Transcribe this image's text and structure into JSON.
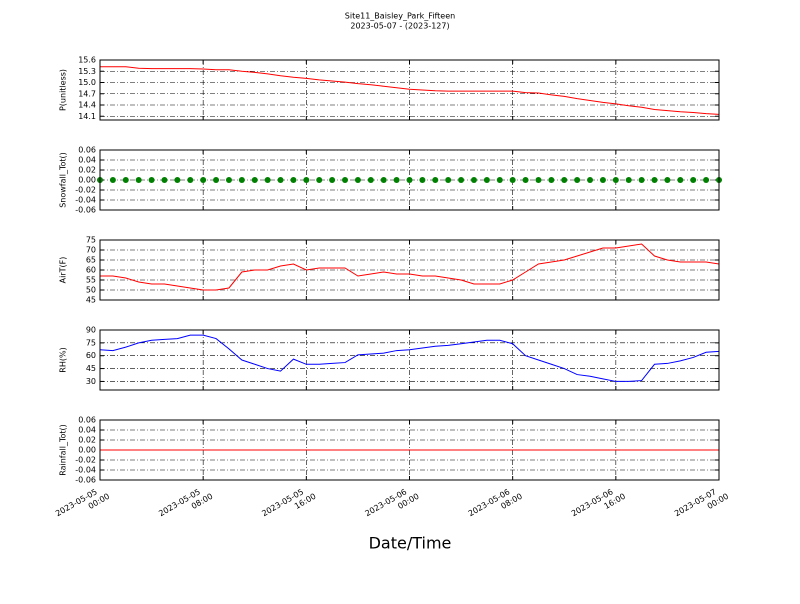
{
  "chart_data": [
    {
      "type": "line",
      "title": "Site11_Baisley_Park_Fifteen",
      "subtitle": "2023-05-07 - (2023-127)",
      "ylabel": "P(unitless)",
      "x": [
        "2023-05-05 00:00",
        "2023-05-05 01:00",
        "2023-05-05 02:00",
        "2023-05-05 03:00",
        "2023-05-05 04:00",
        "2023-05-05 05:00",
        "2023-05-05 06:00",
        "2023-05-05 07:00",
        "2023-05-05 08:00",
        "2023-05-05 09:00",
        "2023-05-05 10:00",
        "2023-05-05 11:00",
        "2023-05-05 12:00",
        "2023-05-05 13:00",
        "2023-05-05 14:00",
        "2023-05-05 15:00",
        "2023-05-05 16:00",
        "2023-05-05 17:00",
        "2023-05-05 18:00",
        "2023-05-05 19:00",
        "2023-05-05 20:00",
        "2023-05-05 21:00",
        "2023-05-05 22:00",
        "2023-05-05 23:00",
        "2023-05-06 00:00",
        "2023-05-06 01:00",
        "2023-05-06 02:00",
        "2023-05-06 03:00",
        "2023-05-06 04:00",
        "2023-05-06 05:00",
        "2023-05-06 06:00",
        "2023-05-06 07:00",
        "2023-05-06 08:00",
        "2023-05-06 09:00",
        "2023-05-06 10:00",
        "2023-05-06 11:00",
        "2023-05-06 12:00",
        "2023-05-06 13:00",
        "2023-05-06 14:00",
        "2023-05-06 15:00",
        "2023-05-06 16:00",
        "2023-05-06 17:00",
        "2023-05-06 18:00",
        "2023-05-06 19:00",
        "2023-05-06 20:00",
        "2023-05-06 21:00",
        "2023-05-06 22:00",
        "2023-05-06 23:00",
        "2023-05-07 00:00"
      ],
      "series": [
        {
          "color": "#ff0000",
          "style": "line",
          "values": [
            15.42,
            15.42,
            15.42,
            15.38,
            15.37,
            15.37,
            15.37,
            15.37,
            15.36,
            15.34,
            15.34,
            15.3,
            15.27,
            15.23,
            15.18,
            15.14,
            15.11,
            15.07,
            15.04,
            15.01,
            14.97,
            14.94,
            14.9,
            14.86,
            14.82,
            14.8,
            14.78,
            14.77,
            14.77,
            14.77,
            14.77,
            14.77,
            14.77,
            14.73,
            14.72,
            14.67,
            14.63,
            14.57,
            14.52,
            14.47,
            14.43,
            14.38,
            14.34,
            14.28,
            14.25,
            14.22,
            14.2,
            14.17,
            14.15
          ]
        }
      ],
      "ylim": [
        14.0,
        15.6
      ],
      "yticks": [
        14.1,
        14.4,
        14.7,
        {
          "value": 15,
          "label": "15.0"
        },
        15.3,
        15.6
      ],
      "grid": true
    },
    {
      "type": "line",
      "ylabel": "Snowfall_Tot()",
      "x": [
        "2023-05-05 00:00",
        "2023-05-05 01:00",
        "2023-05-05 02:00",
        "2023-05-05 03:00",
        "2023-05-05 04:00",
        "2023-05-05 05:00",
        "2023-05-05 06:00",
        "2023-05-05 07:00",
        "2023-05-05 08:00",
        "2023-05-05 09:00",
        "2023-05-05 10:00",
        "2023-05-05 11:00",
        "2023-05-05 12:00",
        "2023-05-05 13:00",
        "2023-05-05 14:00",
        "2023-05-05 15:00",
        "2023-05-05 16:00",
        "2023-05-05 17:00",
        "2023-05-05 18:00",
        "2023-05-05 19:00",
        "2023-05-05 20:00",
        "2023-05-05 21:00",
        "2023-05-05 22:00",
        "2023-05-05 23:00",
        "2023-05-06 00:00",
        "2023-05-06 01:00",
        "2023-05-06 02:00",
        "2023-05-06 03:00",
        "2023-05-06 04:00",
        "2023-05-06 05:00",
        "2023-05-06 06:00",
        "2023-05-06 07:00",
        "2023-05-06 08:00",
        "2023-05-06 09:00",
        "2023-05-06 10:00",
        "2023-05-06 11:00",
        "2023-05-06 12:00",
        "2023-05-06 13:00",
        "2023-05-06 14:00",
        "2023-05-06 15:00",
        "2023-05-06 16:00",
        "2023-05-06 17:00",
        "2023-05-06 18:00",
        "2023-05-06 19:00",
        "2023-05-06 20:00",
        "2023-05-06 21:00",
        "2023-05-06 22:00",
        "2023-05-06 23:00",
        "2023-05-07 00:00"
      ],
      "series": [
        {
          "color": "#008000",
          "style": "marker",
          "values": [
            0,
            0,
            0,
            0,
            0,
            0,
            0,
            0,
            0,
            0,
            0,
            0,
            0,
            0,
            0,
            0,
            0,
            0,
            0,
            0,
            0,
            0,
            0,
            0,
            0,
            0,
            0,
            0,
            0,
            0,
            0,
            0,
            0,
            0,
            0,
            0,
            0,
            0,
            0,
            0,
            0,
            0,
            0,
            0,
            0,
            0,
            0,
            0,
            0
          ]
        }
      ],
      "ylim": [
        -0.06,
        0.06
      ],
      "yticks": [
        -0.06,
        -0.04,
        -0.02,
        {
          "value": 0,
          "label": "0.00"
        },
        0.02,
        0.04,
        0.06
      ],
      "grid": true
    },
    {
      "type": "line",
      "ylabel": "AirT(F)",
      "x": [
        "2023-05-05 00:00",
        "2023-05-05 01:00",
        "2023-05-05 02:00",
        "2023-05-05 03:00",
        "2023-05-05 04:00",
        "2023-05-05 05:00",
        "2023-05-05 06:00",
        "2023-05-05 07:00",
        "2023-05-05 08:00",
        "2023-05-05 09:00",
        "2023-05-05 10:00",
        "2023-05-05 11:00",
        "2023-05-05 12:00",
        "2023-05-05 13:00",
        "2023-05-05 14:00",
        "2023-05-05 15:00",
        "2023-05-05 16:00",
        "2023-05-05 17:00",
        "2023-05-05 18:00",
        "2023-05-05 19:00",
        "2023-05-05 20:00",
        "2023-05-05 21:00",
        "2023-05-05 22:00",
        "2023-05-05 23:00",
        "2023-05-06 00:00",
        "2023-05-06 01:00",
        "2023-05-06 02:00",
        "2023-05-06 03:00",
        "2023-05-06 04:00",
        "2023-05-06 05:00",
        "2023-05-06 06:00",
        "2023-05-06 07:00",
        "2023-05-06 08:00",
        "2023-05-06 09:00",
        "2023-05-06 10:00",
        "2023-05-06 11:00",
        "2023-05-06 12:00",
        "2023-05-06 13:00",
        "2023-05-06 14:00",
        "2023-05-06 15:00",
        "2023-05-06 16:00",
        "2023-05-06 17:00",
        "2023-05-06 18:00",
        "2023-05-06 19:00",
        "2023-05-06 20:00",
        "2023-05-06 21:00",
        "2023-05-06 22:00",
        "2023-05-06 23:00",
        "2023-05-07 00:00"
      ],
      "series": [
        {
          "color": "#ff0000",
          "style": "line",
          "values": [
            57,
            57,
            56,
            54,
            53,
            53,
            52,
            51,
            50,
            50,
            51,
            59,
            60,
            60,
            62,
            63,
            60,
            61,
            61,
            61,
            57,
            58,
            59,
            58,
            58,
            57,
            57,
            56,
            55,
            53,
            53,
            53,
            55,
            59,
            63,
            64,
            65,
            67,
            69,
            71,
            71,
            72,
            73,
            67,
            65,
            64,
            64,
            64,
            63
          ]
        }
      ],
      "ylim": [
        45,
        75
      ],
      "yticks": [
        45,
        50,
        55,
        60,
        65,
        70,
        75
      ],
      "grid": true
    },
    {
      "type": "line",
      "ylabel": "RH(%)",
      "x": [
        "2023-05-05 00:00",
        "2023-05-05 01:00",
        "2023-05-05 02:00",
        "2023-05-05 03:00",
        "2023-05-05 04:00",
        "2023-05-05 05:00",
        "2023-05-05 06:00",
        "2023-05-05 07:00",
        "2023-05-05 08:00",
        "2023-05-05 09:00",
        "2023-05-05 10:00",
        "2023-05-05 11:00",
        "2023-05-05 12:00",
        "2023-05-05 13:00",
        "2023-05-05 14:00",
        "2023-05-05 15:00",
        "2023-05-05 16:00",
        "2023-05-05 17:00",
        "2023-05-05 18:00",
        "2023-05-05 19:00",
        "2023-05-05 20:00",
        "2023-05-05 21:00",
        "2023-05-05 22:00",
        "2023-05-05 23:00",
        "2023-05-06 00:00",
        "2023-05-06 01:00",
        "2023-05-06 02:00",
        "2023-05-06 03:00",
        "2023-05-06 04:00",
        "2023-05-06 05:00",
        "2023-05-06 06:00",
        "2023-05-06 07:00",
        "2023-05-06 08:00",
        "2023-05-06 09:00",
        "2023-05-06 10:00",
        "2023-05-06 11:00",
        "2023-05-06 12:00",
        "2023-05-06 13:00",
        "2023-05-06 14:00",
        "2023-05-06 15:00",
        "2023-05-06 16:00",
        "2023-05-06 17:00",
        "2023-05-06 18:00",
        "2023-05-06 19:00",
        "2023-05-06 20:00",
        "2023-05-06 21:00",
        "2023-05-06 22:00",
        "2023-05-06 23:00",
        "2023-05-07 00:00"
      ],
      "series": [
        {
          "color": "#0000ff",
          "style": "line",
          "values": [
            67,
            66,
            70,
            75,
            78,
            79,
            80,
            84,
            84,
            80,
            68,
            55,
            50,
            45,
            42,
            56,
            50,
            50,
            51,
            52,
            61,
            62,
            63,
            66,
            67,
            69,
            71,
            72,
            74,
            76,
            78,
            78,
            74,
            60,
            55,
            50,
            45,
            38,
            36,
            33,
            30,
            30,
            31,
            50,
            51,
            54,
            58,
            64,
            65
          ]
        }
      ],
      "ylim": [
        20,
        90
      ],
      "yticks": [
        30,
        45,
        60,
        75,
        90
      ],
      "grid": true
    },
    {
      "type": "line",
      "ylabel": "Rainfall_Tot()",
      "xlabel": "Date/Time",
      "x": [
        "2023-05-05 00:00",
        "2023-05-05 01:00",
        "2023-05-05 02:00",
        "2023-05-05 03:00",
        "2023-05-05 04:00",
        "2023-05-05 05:00",
        "2023-05-05 06:00",
        "2023-05-05 07:00",
        "2023-05-05 08:00",
        "2023-05-05 09:00",
        "2023-05-05 10:00",
        "2023-05-05 11:00",
        "2023-05-05 12:00",
        "2023-05-05 13:00",
        "2023-05-05 14:00",
        "2023-05-05 15:00",
        "2023-05-05 16:00",
        "2023-05-05 17:00",
        "2023-05-05 18:00",
        "2023-05-05 19:00",
        "2023-05-05 20:00",
        "2023-05-05 21:00",
        "2023-05-05 22:00",
        "2023-05-05 23:00",
        "2023-05-06 00:00",
        "2023-05-06 01:00",
        "2023-05-06 02:00",
        "2023-05-06 03:00",
        "2023-05-06 04:00",
        "2023-05-06 05:00",
        "2023-05-06 06:00",
        "2023-05-06 07:00",
        "2023-05-06 08:00",
        "2023-05-06 09:00",
        "2023-05-06 10:00",
        "2023-05-06 11:00",
        "2023-05-06 12:00",
        "2023-05-06 13:00",
        "2023-05-06 14:00",
        "2023-05-06 15:00",
        "2023-05-06 16:00",
        "2023-05-06 17:00",
        "2023-05-06 18:00",
        "2023-05-06 19:00",
        "2023-05-06 20:00",
        "2023-05-06 21:00",
        "2023-05-06 22:00",
        "2023-05-06 23:00",
        "2023-05-07 00:00"
      ],
      "series": [
        {
          "color": "#ff0000",
          "style": "line",
          "values": [
            0,
            0,
            0,
            0,
            0,
            0,
            0,
            0,
            0,
            0,
            0,
            0,
            0,
            0,
            0,
            0,
            0,
            0,
            0,
            0,
            0,
            0,
            0,
            0,
            0,
            0,
            0,
            0,
            0,
            0,
            0,
            0,
            0,
            0,
            0,
            0,
            0,
            0,
            0,
            0,
            0,
            0,
            0,
            0,
            0,
            0,
            0,
            0,
            0
          ]
        }
      ],
      "ylim": [
        -0.06,
        0.06
      ],
      "yticks": [
        -0.06,
        -0.04,
        -0.02,
        {
          "value": 0,
          "label": "0.00"
        },
        0.02,
        0.04,
        0.06
      ],
      "grid": true,
      "xlim": [
        "2023-05-05 00:00",
        "2023-05-07 00:00"
      ],
      "xticks": [
        "2023-05-05 00:00",
        "2023-05-05 08:00",
        "2023-05-05 16:00",
        "2023-05-06 00:00",
        "2023-05-06 08:00",
        "2023-05-06 16:00",
        "2023-05-07 00:00"
      ]
    }
  ]
}
